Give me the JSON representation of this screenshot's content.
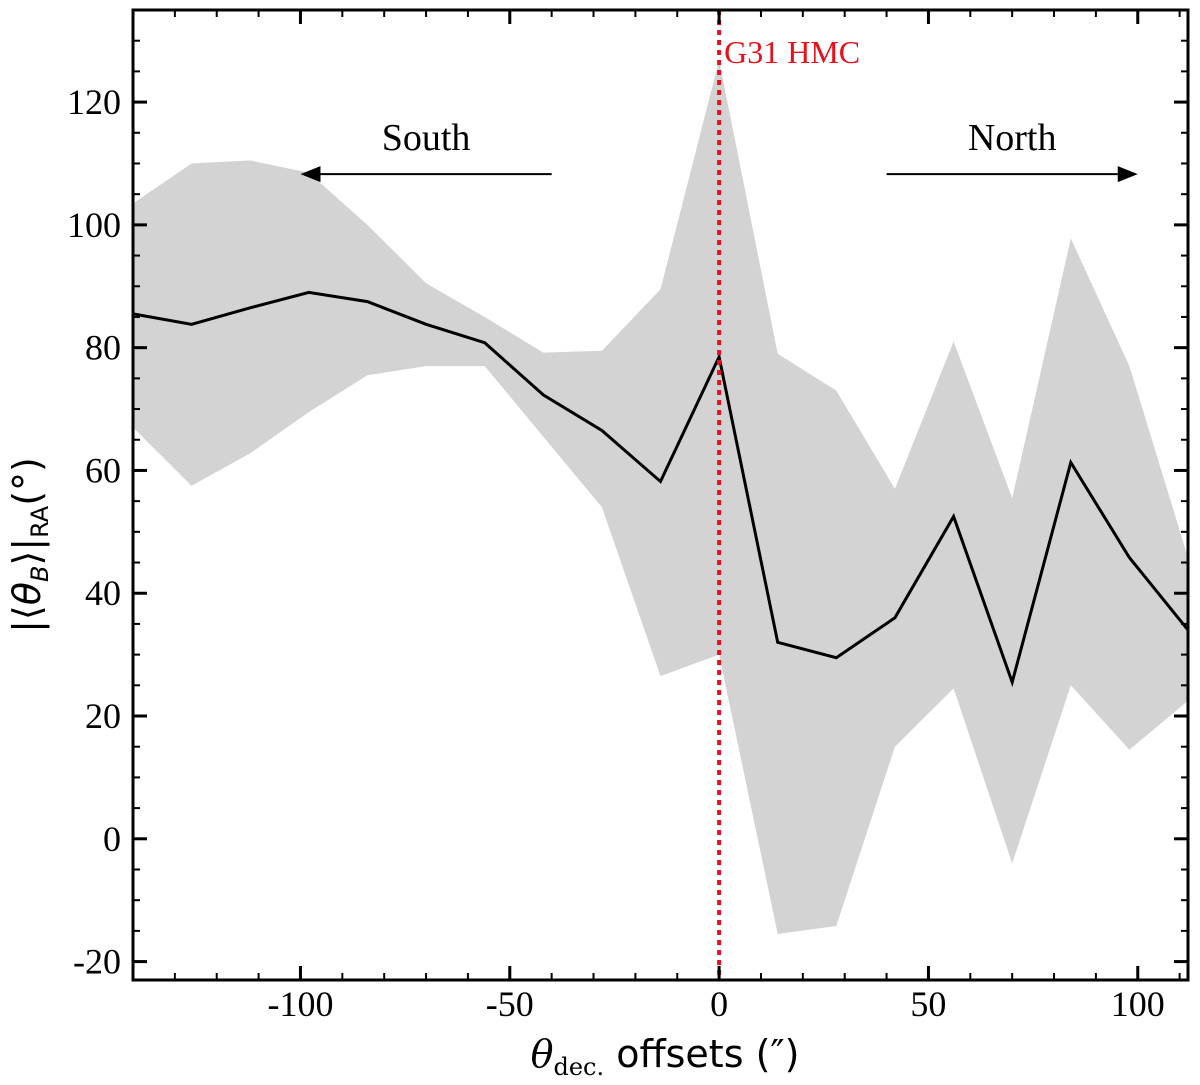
{
  "chart_data": {
    "type": "line",
    "title": "",
    "xlabel": {
      "symbol": "θ",
      "subscript": "dec.",
      "text": " offsets (″)"
    },
    "ylabel": {
      "prefix": "|⟨",
      "symbol": "θ",
      "subscript": "B",
      "mid": "⟩|",
      "subscript2": "RA",
      "suffix": "(°)"
    },
    "xlim": [
      -140,
      112
    ],
    "ylim": [
      -23,
      135
    ],
    "xticks": [
      -100,
      -50,
      0,
      50,
      100
    ],
    "xtick_labels": [
      "-100",
      "-50",
      "0",
      "50",
      "100"
    ],
    "yticks": [
      -20,
      0,
      20,
      40,
      60,
      80,
      100,
      120
    ],
    "ytick_labels": [
      "-20",
      "0",
      "20",
      "40",
      "60",
      "80",
      "100",
      "120"
    ],
    "x": [
      -140,
      -126,
      -112,
      -98,
      -84,
      -70,
      -56,
      -42,
      -28,
      -14,
      0,
      14,
      28,
      42,
      56,
      70,
      84,
      98,
      112
    ],
    "series": [
      {
        "values": [
          85.5,
          83.8,
          86.5,
          89.0,
          87.5,
          83.8,
          80.8,
          72.3,
          66.5,
          58.2,
          78.5,
          32.0,
          29.5,
          36.0,
          52.5,
          25.5,
          61.3,
          45.8,
          34.0
        ]
      }
    ],
    "band": {
      "upper": [
        103.5,
        110.0,
        110.5,
        108.5,
        100.0,
        90.5,
        85.0,
        79.2,
        79.5,
        89.5,
        126.8,
        79.0,
        73.0,
        57.0,
        81.0,
        55.5,
        97.8,
        77.0,
        45.8
      ],
      "lower": [
        67.0,
        57.5,
        62.8,
        69.5,
        75.5,
        77.0,
        77.0,
        65.5,
        54.0,
        26.5,
        30.0,
        -15.5,
        -14.2,
        15.0,
        24.5,
        -4.0,
        25.0,
        14.5,
        22.5
      ]
    },
    "vline": {
      "x": 0,
      "label": "G31 HMC",
      "color": "#e8101a"
    },
    "annotations": [
      {
        "text": "South",
        "direction": "left",
        "x_from": -40,
        "x_to": -100,
        "y": 113
      },
      {
        "text": "North",
        "direction": "right",
        "x_from": 40,
        "x_to": 100,
        "y": 113
      }
    ],
    "colors": {
      "line": "#000000",
      "band": "#d3d3d3",
      "vline": "#e8101a"
    },
    "grid": false,
    "legend": "none"
  }
}
